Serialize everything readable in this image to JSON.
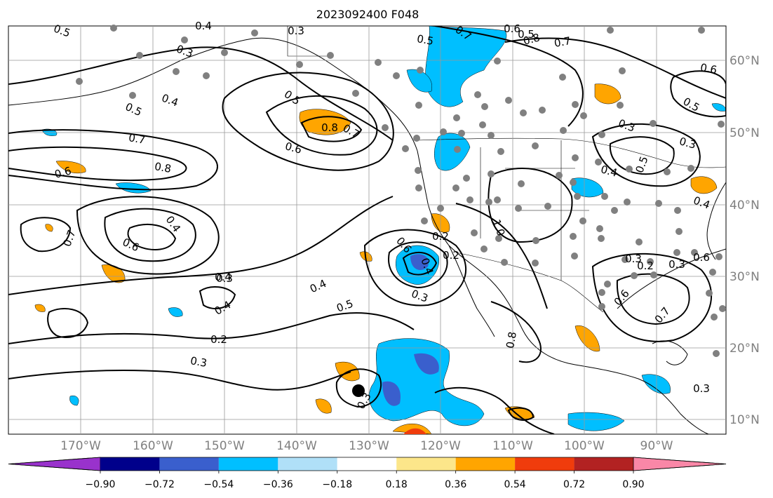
{
  "title": "2023092400 F048",
  "map": {
    "lon_ticks": [
      "170°W",
      "160°W",
      "150°W",
      "140°W",
      "130°W",
      "120°W",
      "110°W",
      "100°W",
      "90°W"
    ],
    "lat_ticks": [
      "60°N",
      "50°N",
      "40°N",
      "30°N",
      "20°N",
      "10°N"
    ],
    "contour_labels": [
      "0.5",
      "0.4",
      "0.3",
      "0.3",
      "0.5",
      "0.4",
      "0.5",
      "0.7",
      "0.6",
      "0.7",
      "0.8",
      "0.6",
      "0.7",
      "0.8",
      "0.6",
      "0.5",
      "0.8",
      "0.7",
      "0.6",
      "0.4",
      "0.6",
      "0.7",
      "0.4",
      "0.4",
      "0.5",
      "0.6",
      "0.4",
      "0.4",
      "0.2",
      "0.3",
      "0.3",
      "0.3",
      "1.0",
      "0.8",
      "0.6",
      "0.6",
      "0.7",
      "0.3",
      "0.3",
      "0.4",
      "0.5",
      "0.2",
      "0.2",
      "0.3",
      "0.3",
      "0.4",
      "0.3",
      "0.3",
      "0.5",
      "0.5",
      "0.2"
    ]
  },
  "colorbar": {
    "ticks": [
      "−0.90",
      "−0.72",
      "−0.54",
      "−0.36",
      "−0.18",
      "0.18",
      "0.36",
      "0.54",
      "0.72",
      "0.90"
    ],
    "colors": [
      "#9932cc",
      "#00008b",
      "#3a5fcd",
      "#00bfff",
      "#b0e0f8",
      "#ffffff",
      "#fce68a",
      "#ffa500",
      "#f03c0c",
      "#b22222",
      "#f987a7"
    ]
  },
  "colors": {
    "ocean": "#ffffff",
    "contour": "#000000",
    "grid": "#999999",
    "station": "#808080"
  }
}
